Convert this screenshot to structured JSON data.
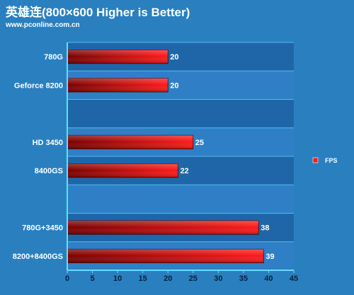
{
  "header": {
    "title": "英雄连(800×600  Higher is Better)",
    "subtitle": "www.pconline.com.cn"
  },
  "colors": {
    "background": "#2a7fbf",
    "plot_background": "#1f66a8",
    "plot_band": "#2f7fc6",
    "axis": "#66ddff",
    "bar_dark": "#8b0000",
    "bar_light": "#ff1a1a"
  },
  "chart_data": {
    "type": "bar",
    "orientation": "horizontal",
    "categories": [
      "780G",
      "Geforce 8200",
      "",
      "HD 3450",
      "8400GS",
      "",
      "780G+3450",
      "8200+8400GS"
    ],
    "series": [
      {
        "name": "FPS",
        "values": [
          20,
          20,
          null,
          25,
          22,
          null,
          38,
          39
        ]
      }
    ],
    "xlim": [
      0,
      45
    ],
    "xticks": [
      0,
      5,
      10,
      15,
      20,
      25,
      30,
      35,
      40,
      45
    ],
    "xlabel": "",
    "ylabel": "",
    "grid": true,
    "legend": "right"
  }
}
